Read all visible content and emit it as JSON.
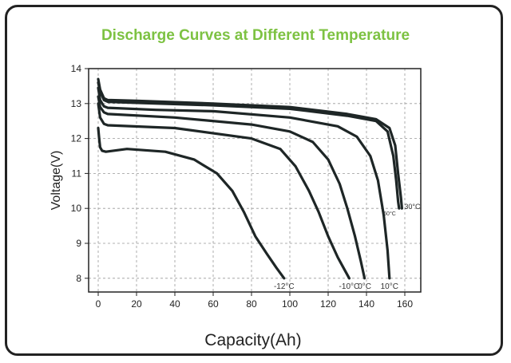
{
  "chart_data": {
    "type": "line",
    "title": "Discharge Curves at Different Temperature",
    "xlabel": "Capacity(Ah)",
    "ylabel": "Voltage(V)",
    "xlim": [
      -5,
      168
    ],
    "ylim": [
      7.6,
      14
    ],
    "xticks": [
      0,
      20,
      40,
      60,
      80,
      100,
      120,
      140,
      160
    ],
    "yticks": [
      8,
      9,
      10,
      11,
      12,
      13,
      14
    ],
    "grid": true,
    "line_color": "#1e2626",
    "title_color": "#7dc242",
    "series": [
      {
        "name": "30°C",
        "x": [
          0,
          1,
          3,
          5,
          20,
          60,
          100,
          130,
          145,
          152,
          155,
          156.5,
          158,
          158.5
        ],
        "y": [
          13.7,
          13.4,
          13.15,
          13.1,
          13.08,
          13.0,
          12.9,
          12.7,
          12.55,
          12.3,
          11.8,
          11.0,
          10.3,
          10.0
        ]
      },
      {
        "name": "60°C",
        "x": [
          0,
          1,
          3,
          5,
          20,
          60,
          100,
          130,
          145,
          151,
          154,
          155.5,
          156.5,
          157
        ],
        "y": [
          13.6,
          13.35,
          13.1,
          13.05,
          13.02,
          12.95,
          12.85,
          12.65,
          12.5,
          12.2,
          11.5,
          10.8,
          10.2,
          10.0
        ]
      },
      {
        "name": "10°C",
        "x": [
          0,
          1,
          3,
          5,
          30,
          60,
          100,
          125,
          135,
          142,
          146,
          149,
          151,
          152
        ],
        "y": [
          13.45,
          13.1,
          12.92,
          12.88,
          12.82,
          12.78,
          12.6,
          12.35,
          12.05,
          11.5,
          10.8,
          9.8,
          8.8,
          8.0
        ]
      },
      {
        "name": "0°C",
        "x": [
          0,
          1,
          3,
          5,
          40,
          80,
          100,
          112,
          120,
          126,
          130,
          134,
          137,
          139
        ],
        "y": [
          13.2,
          12.9,
          12.75,
          12.7,
          12.6,
          12.4,
          12.2,
          11.9,
          11.4,
          10.7,
          10.0,
          9.2,
          8.5,
          8.0
        ]
      },
      {
        "name": "-10°C",
        "x": [
          0,
          1,
          3,
          5,
          40,
          80,
          95,
          103,
          110,
          115,
          120,
          125,
          128,
          131
        ],
        "y": [
          13.0,
          12.6,
          12.42,
          12.38,
          12.3,
          12.0,
          11.7,
          11.2,
          10.5,
          9.9,
          9.2,
          8.6,
          8.3,
          8.0
        ]
      },
      {
        "name": "-12°C",
        "x": [
          0,
          0.5,
          1,
          2,
          4,
          15,
          35,
          50,
          62,
          70,
          76,
          82,
          88,
          93,
          97
        ],
        "y": [
          12.3,
          12.0,
          11.75,
          11.65,
          11.62,
          11.7,
          11.62,
          11.4,
          11.0,
          10.5,
          9.9,
          9.2,
          8.7,
          8.3,
          8.0
        ]
      }
    ]
  }
}
